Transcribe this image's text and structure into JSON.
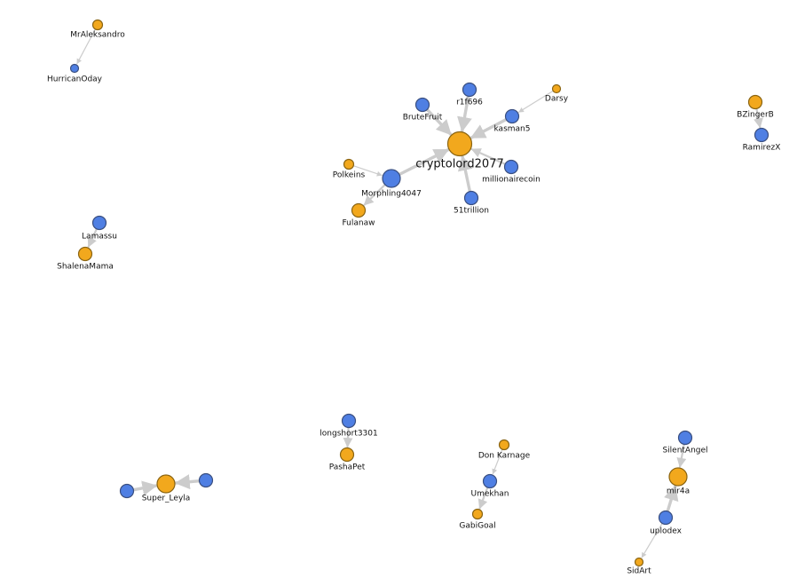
{
  "colors": {
    "blue_fill": "#4f7fe3",
    "blue_stroke": "#3a4f80",
    "orange_fill": "#f2a81d",
    "orange_stroke": "#8a6412",
    "edge": "#cccccc",
    "label": "#111111"
  },
  "nodes": [
    {
      "id": "cryptolord2077",
      "label": "cryptolord2077",
      "group": "orange",
      "size": "xl"
    },
    {
      "id": "Morphling4047",
      "label": "Morphling4047",
      "group": "blue",
      "size": "lg"
    },
    {
      "id": "r1f696",
      "label": "r1f696",
      "group": "blue",
      "size": "md"
    },
    {
      "id": "BruteFruit",
      "label": "BruteFruit",
      "group": "blue",
      "size": "md"
    },
    {
      "id": "kasman5",
      "label": "kasman5",
      "group": "blue",
      "size": "md"
    },
    {
      "id": "Darsy",
      "label": "Darsy",
      "group": "orange",
      "size": "xs"
    },
    {
      "id": "millionairecoin",
      "label": "millionairecoin",
      "group": "blue",
      "size": "md"
    },
    {
      "id": "51trillion",
      "label": "51trillion",
      "group": "blue",
      "size": "md"
    },
    {
      "id": "Polkeins",
      "label": "Polkeins",
      "group": "orange",
      "size": "sm"
    },
    {
      "id": "Fulanaw",
      "label": "Fulanaw",
      "group": "orange",
      "size": "md"
    },
    {
      "id": "MrAleksandro",
      "label": "MrAleksandro",
      "group": "orange",
      "size": "sm"
    },
    {
      "id": "HurricanOday",
      "label": "HurricanOday",
      "group": "blue",
      "size": "xs"
    },
    {
      "id": "BZingerB",
      "label": "BZingerB",
      "group": "orange",
      "size": "md"
    },
    {
      "id": "RamirezX",
      "label": "RamirezX",
      "group": "blue",
      "size": "md"
    },
    {
      "id": "Lamassu",
      "label": "Lamassu",
      "group": "blue",
      "size": "md"
    },
    {
      "id": "ShalenaMama",
      "label": "ShalenaMama",
      "group": "orange",
      "size": "md"
    },
    {
      "id": "longshort3301",
      "label": "longshort3301",
      "group": "blue",
      "size": "md"
    },
    {
      "id": "PashaPet",
      "label": "PashaPet",
      "group": "orange",
      "size": "md"
    },
    {
      "id": "Don Karnage",
      "label": "Don Karnage",
      "group": "orange",
      "size": "sm"
    },
    {
      "id": "Umekhan",
      "label": "Umekhan",
      "group": "blue",
      "size": "md"
    },
    {
      "id": "GabiGoal",
      "label": "GabiGoal",
      "group": "orange",
      "size": "sm"
    },
    {
      "id": "SilentAngel",
      "label": "SilentAngel",
      "group": "blue",
      "size": "md"
    },
    {
      "id": "mir4a",
      "label": "mir4a",
      "group": "orange",
      "size": "lg"
    },
    {
      "id": "uplodex",
      "label": "uplodex",
      "group": "blue",
      "size": "md"
    },
    {
      "id": "SidArt",
      "label": "SidArt",
      "group": "orange",
      "size": "xs"
    },
    {
      "id": "Super_Leyla",
      "label": "Super_Leyla",
      "group": "orange",
      "size": "lg"
    },
    {
      "id": "leyla_left",
      "label": "",
      "group": "blue",
      "size": "md"
    },
    {
      "id": "leyla_right",
      "label": "",
      "group": "blue",
      "size": "md"
    }
  ],
  "edges": [
    {
      "source": "r1f696",
      "target": "cryptolord2077",
      "weight": "heavy"
    },
    {
      "source": "BruteFruit",
      "target": "cryptolord2077",
      "weight": "heavy"
    },
    {
      "source": "kasman5",
      "target": "cryptolord2077",
      "weight": "heavy"
    },
    {
      "source": "Darsy",
      "target": "kasman5",
      "weight": "light"
    },
    {
      "source": "millionairecoin",
      "target": "cryptolord2077",
      "weight": "medium"
    },
    {
      "source": "51trillion",
      "target": "cryptolord2077",
      "weight": "heavy"
    },
    {
      "source": "Morphling4047",
      "target": "cryptolord2077",
      "weight": "heavy"
    },
    {
      "source": "Polkeins",
      "target": "Morphling4047",
      "weight": "light"
    },
    {
      "source": "Morphling4047",
      "target": "Fulanaw",
      "weight": "medium"
    },
    {
      "source": "MrAleksandro",
      "target": "HurricanOday",
      "weight": "light"
    },
    {
      "source": "BZingerB",
      "target": "RamirezX",
      "weight": "medium"
    },
    {
      "source": "Lamassu",
      "target": "ShalenaMama",
      "weight": "medium"
    },
    {
      "source": "longshort3301",
      "target": "PashaPet",
      "weight": "medium"
    },
    {
      "source": "Don Karnage",
      "target": "Umekhan",
      "weight": "light"
    },
    {
      "source": "Umekhan",
      "target": "GabiGoal",
      "weight": "medium"
    },
    {
      "source": "SilentAngel",
      "target": "mir4a",
      "weight": "medium"
    },
    {
      "source": "uplodex",
      "target": "mir4a",
      "weight": "heavy"
    },
    {
      "source": "uplodex",
      "target": "SidArt",
      "weight": "light"
    },
    {
      "source": "leyla_left",
      "target": "Super_Leyla",
      "weight": "heavy"
    },
    {
      "source": "leyla_right",
      "target": "Super_Leyla",
      "weight": "heavy"
    }
  ]
}
